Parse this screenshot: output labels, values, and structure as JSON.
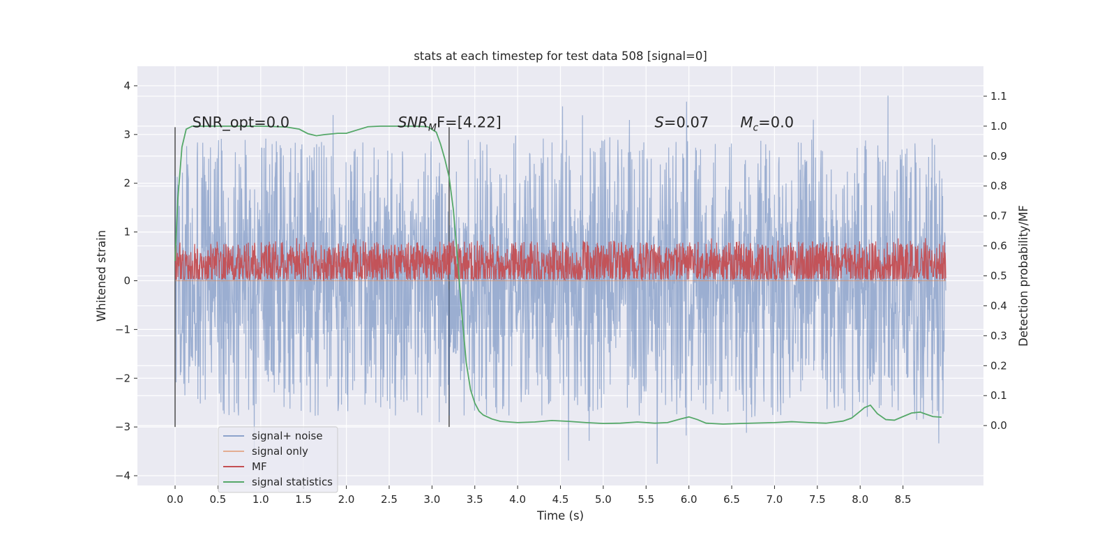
{
  "chart_data": {
    "type": "line",
    "title": "stats at each timestep for test data 508 [signal=0]",
    "xlabel": "Time (s)",
    "ylabel": "Whitened strain",
    "y2label": "Detection probability/MF",
    "xlim": [
      -0.44,
      9.44
    ],
    "ylim": [
      -4.2,
      4.4
    ],
    "y2lim": [
      -0.2,
      1.2
    ],
    "x_ticks": [
      0.0,
      0.5,
      1.0,
      1.5,
      2.0,
      2.5,
      3.0,
      3.5,
      4.0,
      4.5,
      5.0,
      5.5,
      6.0,
      6.5,
      7.0,
      7.5,
      8.0,
      8.5
    ],
    "x_tick_labels": [
      "0.0",
      "0.5",
      "1.0",
      "1.5",
      "2.0",
      "2.5",
      "3.0",
      "3.5",
      "4.0",
      "4.5",
      "5.0",
      "5.5",
      "6.0",
      "6.5",
      "7.0",
      "7.5",
      "8.0",
      "8.5"
    ],
    "y_ticks": [
      4,
      3,
      2,
      1,
      0,
      -1,
      -2,
      -3,
      -4
    ],
    "y_tick_labels": [
      "4",
      "3",
      "2",
      "1",
      "0",
      "−1",
      "−2",
      "−3",
      "−4"
    ],
    "y2_ticks": [
      1.1,
      1.0,
      0.9,
      0.8,
      0.7,
      0.6,
      0.5,
      0.4,
      0.3,
      0.2,
      0.1,
      0.0
    ],
    "y2_tick_labels": [
      "1.1",
      "1.0",
      "0.9",
      "0.8",
      "0.7",
      "0.6",
      "0.5",
      "0.4",
      "0.3",
      "0.2",
      "0.1",
      "0.0"
    ],
    "grid": true,
    "legend_position": "lower-left",
    "annotations": [
      {
        "text": "SNR_opt=0.0",
        "x": 0.2,
        "y": 3.15
      },
      {
        "text": "SNR_MF=[4.22]",
        "display_base": "SNR",
        "display_sub": "M",
        "display_rest": "F=[4.22]",
        "x": 2.6,
        "y": 3.15
      },
      {
        "text": "S=0.07",
        "display_base": "S",
        "display_sub": "",
        "display_rest": "=0.07",
        "x": 5.6,
        "y": 3.15
      },
      {
        "text": "M_c=0.0",
        "display_base": "M",
        "display_sub": "c",
        "display_rest": "=0.0",
        "x": 6.6,
        "y": 3.15
      }
    ],
    "vertical_markers": [
      {
        "x": 0.0,
        "y_from": -3.0,
        "y_to": 3.15
      },
      {
        "x": 3.2,
        "y_from": -3.0,
        "y_to": 3.15
      }
    ],
    "series": [
      {
        "name": "signal+ noise",
        "color": "#4c72b0",
        "axis": "left",
        "kind": "noise-trace",
        "x_range": [
          0.0,
          9.0
        ],
        "lower_band": -1.3,
        "upper_band": 1.3,
        "max_peak": 4.0,
        "min_trough": -3.8
      },
      {
        "name": "signal only",
        "color": "#dd8452",
        "axis": "left",
        "kind": "line",
        "x": [
          0.0,
          9.0
        ],
        "y": [
          0.0,
          0.0
        ]
      },
      {
        "name": "MF",
        "color": "#c44e52",
        "axis": "left",
        "kind": "noise-trace",
        "x_range": [
          0.0,
          9.0
        ],
        "lower_band": 0.05,
        "upper_band": 0.6,
        "max_peak": 0.95,
        "min_trough": 0.0
      },
      {
        "name": "signal statistics",
        "color": "#55a868",
        "axis": "right",
        "kind": "line",
        "x": [
          0.0,
          0.03,
          0.08,
          0.13,
          0.2,
          0.3,
          0.5,
          1.0,
          1.3,
          1.45,
          1.55,
          1.65,
          1.75,
          1.9,
          2.0,
          2.1,
          2.25,
          2.4,
          2.6,
          2.8,
          2.95,
          3.05,
          3.1,
          3.15,
          3.2,
          3.25,
          3.3,
          3.35,
          3.4,
          3.45,
          3.5,
          3.55,
          3.6,
          3.7,
          3.8,
          4.0,
          4.2,
          4.4,
          4.6,
          4.8,
          5.0,
          5.2,
          5.4,
          5.6,
          5.75,
          5.9,
          6.0,
          6.1,
          6.2,
          6.4,
          6.6,
          7.0,
          7.2,
          7.4,
          7.6,
          7.8,
          7.9,
          8.0,
          8.05,
          8.12,
          8.2,
          8.3,
          8.4,
          8.5,
          8.6,
          8.7,
          8.75,
          8.85,
          8.95
        ],
        "y": [
          0.55,
          0.75,
          0.93,
          0.99,
          1.0,
          1.0,
          1.0,
          1.0,
          0.997,
          0.99,
          0.975,
          0.968,
          0.972,
          0.976,
          0.976,
          0.985,
          0.998,
          1.0,
          1.0,
          1.0,
          0.998,
          0.98,
          0.94,
          0.89,
          0.83,
          0.72,
          0.55,
          0.37,
          0.21,
          0.12,
          0.075,
          0.048,
          0.035,
          0.022,
          0.014,
          0.01,
          0.012,
          0.017,
          0.014,
          0.01,
          0.007,
          0.008,
          0.012,
          0.008,
          0.01,
          0.022,
          0.029,
          0.02,
          0.008,
          0.005,
          0.007,
          0.01,
          0.013,
          0.01,
          0.008,
          0.015,
          0.025,
          0.048,
          0.06,
          0.068,
          0.04,
          0.02,
          0.018,
          0.03,
          0.042,
          0.045,
          0.04,
          0.03,
          0.028
        ]
      }
    ]
  }
}
